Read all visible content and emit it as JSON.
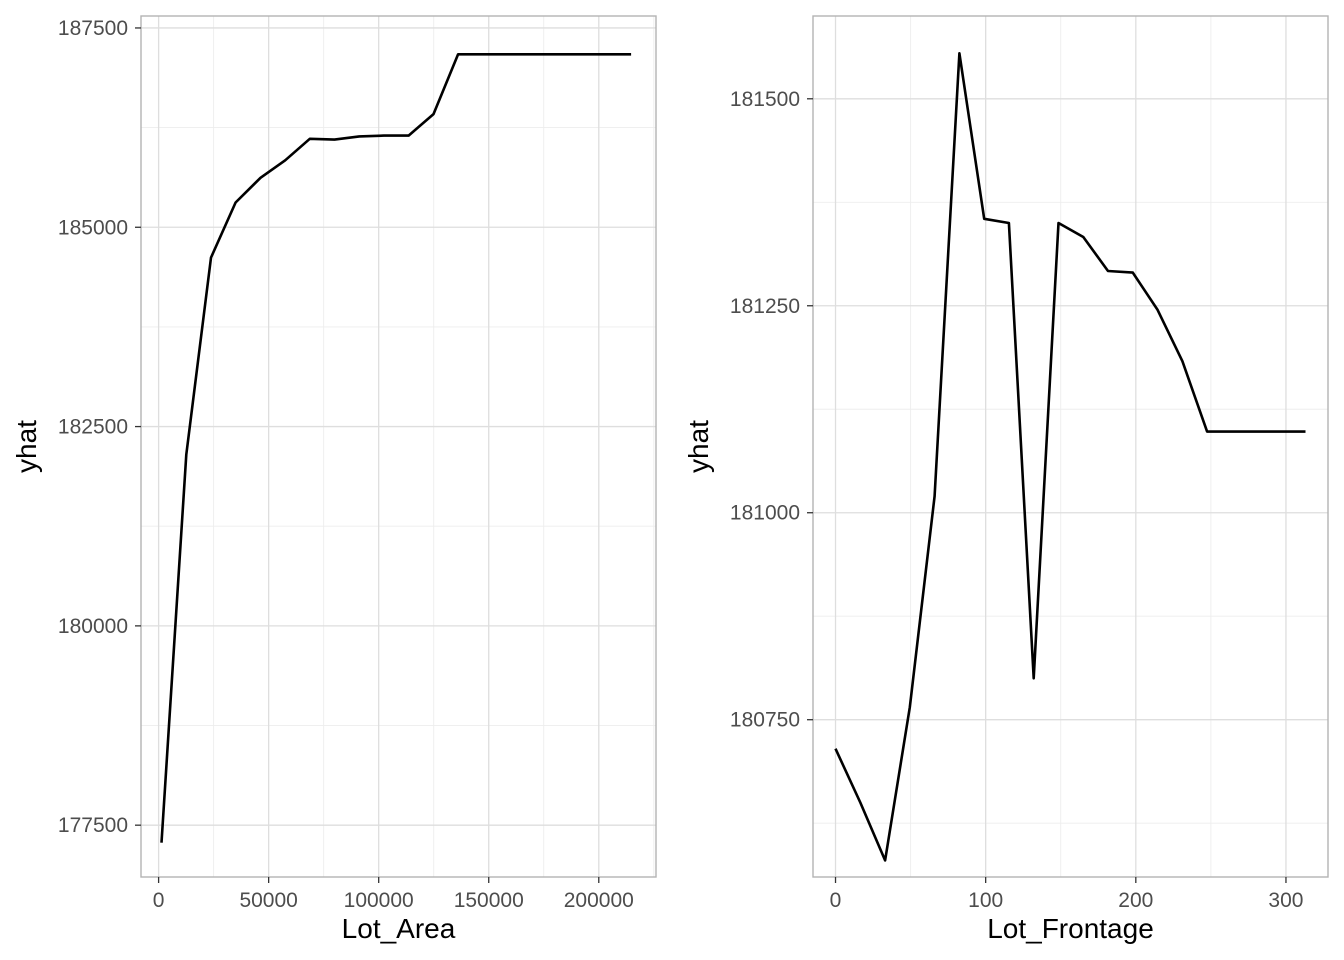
{
  "chart_data": [
    {
      "type": "line",
      "xlabel": "Lot_Area",
      "ylabel": "yhat",
      "xlim": [
        -8000,
        226000
      ],
      "ylim": [
        176850,
        187650
      ],
      "x_ticks": [
        0,
        50000,
        100000,
        150000,
        200000
      ],
      "x_tick_labels": [
        "0",
        "50000",
        "100000",
        "150000",
        "200000"
      ],
      "y_ticks": [
        177500,
        180000,
        182500,
        185000,
        187500
      ],
      "y_tick_labels": [
        "177500",
        "180000",
        "182500",
        "185000",
        "187500"
      ],
      "grid": true,
      "x": [
        1300,
        12600,
        23800,
        35000,
        46300,
        57500,
        68700,
        79900,
        91200,
        102400,
        113600,
        124900,
        136100,
        147300,
        158500,
        169800,
        181000,
        192200,
        203500,
        214700
      ],
      "y": [
        177280,
        182150,
        184620,
        185310,
        185620,
        185840,
        186110,
        186100,
        186140,
        186150,
        186150,
        186420,
        187170,
        187170,
        187170,
        187170,
        187170,
        187170,
        187170,
        187170
      ]
    },
    {
      "type": "line",
      "xlabel": "Lot_Frontage",
      "ylabel": "yhat",
      "xlim": [
        -15,
        328
      ],
      "ylim": [
        180560,
        181600
      ],
      "x_ticks": [
        0,
        100,
        200,
        300
      ],
      "x_tick_labels": [
        "0",
        "100",
        "200",
        "300"
      ],
      "y_ticks": [
        180750,
        181000,
        181250,
        181500
      ],
      "y_tick_labels": [
        "180750",
        "181000",
        "181250",
        "181500"
      ],
      "grid": true,
      "x": [
        0,
        16.5,
        33,
        49.5,
        66,
        82.5,
        99,
        115.5,
        132,
        148.5,
        165,
        181.5,
        198,
        214.5,
        231,
        247.5,
        264,
        280.5,
        297,
        313
      ],
      "y": [
        180715,
        180650,
        180580,
        180765,
        181020,
        181555,
        181355,
        181350,
        180800,
        181350,
        181333,
        181292,
        181290,
        181245,
        181183,
        181098,
        181098,
        181098,
        181098,
        181098
      ]
    }
  ]
}
